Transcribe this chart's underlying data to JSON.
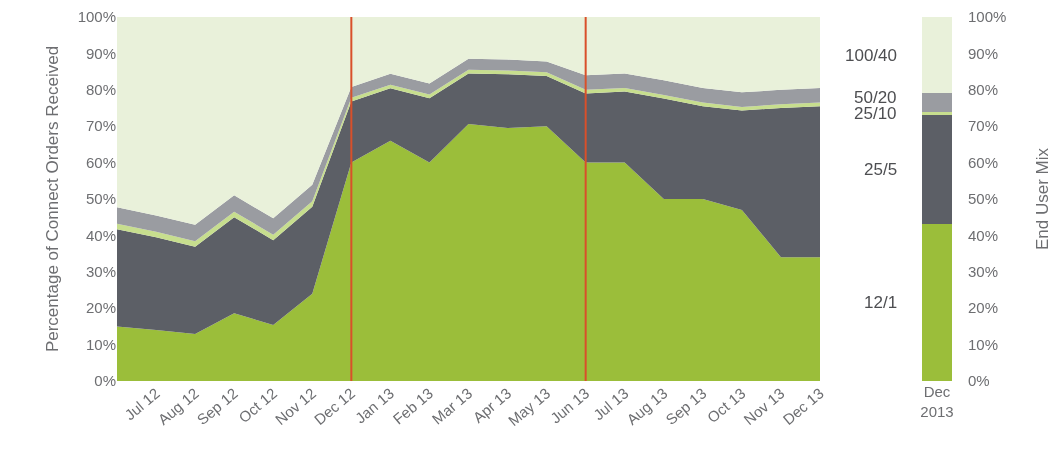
{
  "chart_data": [
    {
      "type": "area",
      "stacked": true,
      "ylabel": "Percentage of Connect Orders Received",
      "categories": [
        null,
        "Jul 12",
        "Aug 12",
        "Sep 12",
        "Oct 12",
        "Nov 12",
        "Dec 12",
        "Jan 13",
        "Feb 13",
        "Mar 13",
        "Apr 13",
        "May 13",
        "Jun 13",
        "Jul 13",
        "Aug 13",
        "Sep 13",
        "Oct 13",
        "Nov 13",
        "Dec 13"
      ],
      "series": [
        {
          "color": "#9bbe3a",
          "values": [
            15,
            14,
            12.9,
            18.6,
            15.4,
            24,
            60,
            66,
            60,
            70.6,
            69.5,
            70,
            60,
            60,
            50,
            50,
            47,
            34,
            34
          ]
        },
        {
          "color": "#5c5f66",
          "values": [
            26.7,
            25.5,
            24,
            26.4,
            23.3,
            23.9,
            16.8,
            14.4,
            17.7,
            13.9,
            14.8,
            13.8,
            19,
            19.5,
            27.6,
            25.5,
            27.3,
            41,
            41.5
          ]
        },
        {
          "color": "#c7de8e",
          "values": [
            1.5,
            1.5,
            1.5,
            1.5,
            1.5,
            1.5,
            1,
            1,
            1,
            1,
            1,
            1,
            1,
            1,
            1,
            1,
            1,
            1,
            1
          ]
        },
        {
          "color": "#9a9ca1",
          "values": [
            4.5,
            4.5,
            4.5,
            4.5,
            4.5,
            4.5,
            3,
            3,
            3,
            3,
            3,
            3,
            4,
            4,
            4,
            4,
            4,
            4,
            4
          ]
        },
        {
          "color": "#e9f1da",
          "values": [
            52.3,
            54.5,
            57.1,
            49,
            55.3,
            46.1,
            19.2,
            15.6,
            18.3,
            11.5,
            11.7,
            12.2,
            16,
            15.5,
            17.4,
            19.5,
            20.7,
            20,
            19.5
          ]
        }
      ],
      "ylim": [
        0,
        100
      ],
      "yticks": [
        {
          "value": 0,
          "label": "0%"
        },
        {
          "value": 10,
          "label": "10%"
        },
        {
          "value": 20,
          "label": "20%"
        },
        {
          "value": 30,
          "label": "30%"
        },
        {
          "value": 40,
          "label": "40%"
        },
        {
          "value": 50,
          "label": "50%"
        },
        {
          "value": 60,
          "label": "60%"
        },
        {
          "value": 70,
          "label": "70%"
        },
        {
          "value": 80,
          "label": "80%"
        },
        {
          "value": 90,
          "label": "90%"
        },
        {
          "value": 100,
          "label": "100%"
        }
      ],
      "ref_lines": [
        {
          "axis": "x",
          "value": "Dec 12",
          "color": "#d9502a"
        },
        {
          "axis": "x",
          "value": "Jun 13",
          "color": "#d9502a"
        }
      ],
      "grid": false,
      "legend": false
    },
    {
      "type": "bar",
      "stacked": true,
      "ylabel": "End User Mix",
      "categories": [
        "Dec 2013"
      ],
      "series": [
        {
          "name": "12/1",
          "color": "#9bbe3a",
          "values": [
            43
          ]
        },
        {
          "name": "25/5",
          "color": "#5c5f66",
          "values": [
            30
          ]
        },
        {
          "name": "25/10",
          "color": "#c7de8e",
          "values": [
            1
          ]
        },
        {
          "name": "50/20",
          "color": "#9a9ca1",
          "values": [
            5
          ]
        },
        {
          "name": "100/40",
          "color": "#e9f1da",
          "values": [
            21
          ]
        }
      ],
      "ylim": [
        0,
        100
      ],
      "yticks": [
        {
          "value": 0,
          "label": "0%"
        },
        {
          "value": 10,
          "label": "10%"
        },
        {
          "value": 20,
          "label": "20%"
        },
        {
          "value": 30,
          "label": "30%"
        },
        {
          "value": 40,
          "label": "40%"
        },
        {
          "value": 50,
          "label": "50%"
        },
        {
          "value": 60,
          "label": "60%"
        },
        {
          "value": 70,
          "label": "70%"
        },
        {
          "value": 80,
          "label": "80%"
        },
        {
          "value": 90,
          "label": "90%"
        },
        {
          "value": 100,
          "label": "100%"
        }
      ],
      "grid": false,
      "legend": false
    }
  ]
}
